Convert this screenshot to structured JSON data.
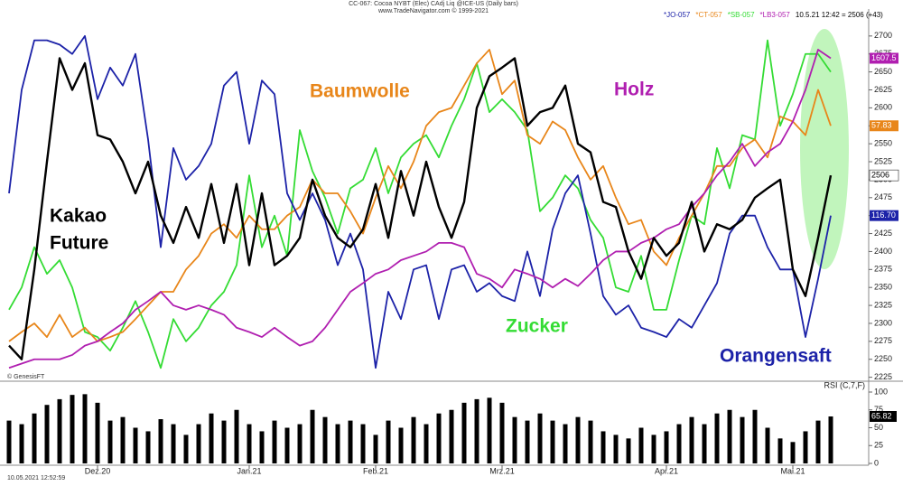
{
  "chart_data": {
    "type": "line",
    "title": "CC-067: Cocoa NYBT (Elec) CAdj Liq @ICE-US  (Daily bars)",
    "subtitle": "www.TradeNavigator.com © 1999-2021",
    "header_info": "10.5.21 12:42 = 2506 (+43)",
    "timestamp": "10.05.2021 12:52:59",
    "source": "© GenesisFT",
    "categories": [
      null,
      null,
      null,
      null,
      null,
      null,
      null,
      "Dez.20",
      null,
      null,
      null,
      null,
      null,
      null,
      null,
      null,
      null,
      null,
      null,
      "Jan.21",
      null,
      null,
      null,
      null,
      null,
      null,
      null,
      null,
      null,
      "Feb.21",
      null,
      null,
      null,
      null,
      null,
      null,
      null,
      null,
      null,
      "Mrz.21",
      null,
      null,
      null,
      null,
      null,
      null,
      null,
      null,
      null,
      null,
      null,
      null,
      "Apr.21",
      null,
      null,
      null,
      null,
      null,
      null,
      null,
      null,
      null,
      "Mai.21",
      null,
      null,
      null
    ],
    "ylim": [
      2222,
      2735
    ],
    "yticks": [
      2225,
      2250,
      2275,
      2300,
      2325,
      2350,
      2375,
      2400,
      2425,
      2450,
      2475,
      2500,
      2525,
      2550,
      2575,
      2600,
      2625,
      2650,
      2675,
      2700
    ],
    "series": [
      {
        "label": [
          "Kakao",
          "Future"
        ],
        "color": "#000000",
        "last_label": "2506",
        "values": [
          2269,
          2250,
          2375,
          2525,
          2669,
          2625,
          2662,
          2562,
          2556,
          2525,
          2481,
          2525,
          2450,
          2412,
          2462,
          2419,
          2494,
          2412,
          2494,
          2381,
          2481,
          2381,
          2394,
          2419,
          2500,
          2450,
          2419,
          2406,
          2431,
          2494,
          2419,
          2512,
          2450,
          2525,
          2462,
          2419,
          2469,
          2600,
          2644,
          2656,
          2669,
          2575,
          2594,
          2600,
          2631,
          2550,
          2538,
          2469,
          2462,
          2400,
          2362,
          2419,
          2394,
          2412,
          2469,
          2400,
          2438,
          2431,
          2444,
          2475,
          2488,
          2500,
          2375,
          2338,
          2419,
          2506
        ]
      },
      {
        "name": "*JO-057",
        "label": [
          "Orangensaft"
        ],
        "color": "#1c22a8",
        "last_label": "116.70",
        "values": [
          2481,
          2625,
          2694,
          2694,
          2688,
          2675,
          2700,
          2612,
          2656,
          2631,
          2675,
          2556,
          2406,
          2544,
          2500,
          2519,
          2550,
          2631,
          2650,
          2550,
          2638,
          2619,
          2481,
          2444,
          2481,
          2444,
          2381,
          2425,
          2375,
          2238,
          2344,
          2306,
          2375,
          2381,
          2306,
          2375,
          2381,
          2344,
          2356,
          2338,
          2331,
          2400,
          2338,
          2431,
          2481,
          2506,
          2425,
          2338,
          2312,
          2325,
          2294,
          2288,
          2281,
          2306,
          2294,
          2325,
          2356,
          2425,
          2450,
          2450,
          2406,
          2375,
          2375,
          2281,
          2362,
          2450
        ]
      },
      {
        "name": "*CT-057",
        "label": [
          "Baumwolle"
        ],
        "color": "#e8861a",
        "last_label": "57.83",
        "values": [
          2275,
          2288,
          2300,
          2281,
          2312,
          2281,
          2294,
          2275,
          2281,
          2288,
          2306,
          2325,
          2344,
          2344,
          2375,
          2394,
          2425,
          2438,
          2419,
          2450,
          2431,
          2431,
          2450,
          2462,
          2500,
          2481,
          2481,
          2456,
          2425,
          2475,
          2519,
          2488,
          2525,
          2575,
          2594,
          2600,
          2631,
          2662,
          2681,
          2619,
          2638,
          2562,
          2550,
          2581,
          2569,
          2531,
          2500,
          2519,
          2475,
          2438,
          2444,
          2400,
          2381,
          2419,
          2450,
          2481,
          2519,
          2519,
          2544,
          2556,
          2531,
          2588,
          2581,
          2562,
          2625,
          2575
        ]
      },
      {
        "name": "*SB-057",
        "label": [
          "Zucker"
        ],
        "color": "#34dc34",
        "values": [
          2319,
          2350,
          2406,
          2369,
          2388,
          2350,
          2288,
          2281,
          2262,
          2294,
          2331,
          2288,
          2238,
          2306,
          2275,
          2294,
          2325,
          2344,
          2381,
          2506,
          2406,
          2450,
          2394,
          2569,
          2512,
          2475,
          2425,
          2488,
          2500,
          2544,
          2481,
          2531,
          2550,
          2562,
          2531,
          2575,
          2612,
          2662,
          2594,
          2612,
          2594,
          2569,
          2456,
          2475,
          2506,
          2488,
          2444,
          2419,
          2350,
          2344,
          2394,
          2319,
          2319,
          2388,
          2450,
          2438,
          2544,
          2488,
          2562,
          2556,
          2694,
          2575,
          2619,
          2675,
          2675,
          2650
        ]
      },
      {
        "name": "*LB3-057",
        "label": [
          "Holz"
        ],
        "color": "#b01fb0",
        "last_label": "1607.5",
        "values": [
          2238,
          2244,
          2250,
          2250,
          2250,
          2256,
          2269,
          2275,
          2288,
          2300,
          2319,
          2331,
          2344,
          2325,
          2319,
          2325,
          2319,
          2312,
          2294,
          2288,
          2281,
          2294,
          2281,
          2269,
          2275,
          2294,
          2319,
          2344,
          2356,
          2369,
          2375,
          2388,
          2394,
          2400,
          2412,
          2412,
          2406,
          2369,
          2362,
          2350,
          2375,
          2369,
          2362,
          2350,
          2362,
          2352,
          2369,
          2388,
          2400,
          2400,
          2412,
          2419,
          2431,
          2438,
          2462,
          2481,
          2506,
          2525,
          2550,
          2519,
          2538,
          2550,
          2581,
          2625,
          2681,
          2669
        ]
      }
    ],
    "rsi": {
      "type": "bar",
      "title": "RSI (C,7,F)",
      "color": "#000000",
      "ylim": [
        0,
        100
      ],
      "yticks": [
        0,
        25,
        50,
        75,
        100
      ],
      "values": [
        60,
        55,
        70,
        82,
        90,
        96,
        97,
        85,
        60,
        65,
        50,
        45,
        62,
        55,
        40,
        55,
        70,
        60,
        75,
        55,
        45,
        60,
        50,
        55,
        75,
        65,
        55,
        60,
        55,
        40,
        60,
        50,
        65,
        55,
        70,
        75,
        85,
        90,
        92,
        85,
        65,
        60,
        70,
        60,
        55,
        65,
        60,
        45,
        40,
        35,
        50,
        40,
        45,
        55,
        65,
        55,
        70,
        75,
        65,
        75,
        50,
        35,
        30,
        45,
        60,
        65.82
      ]
    }
  }
}
